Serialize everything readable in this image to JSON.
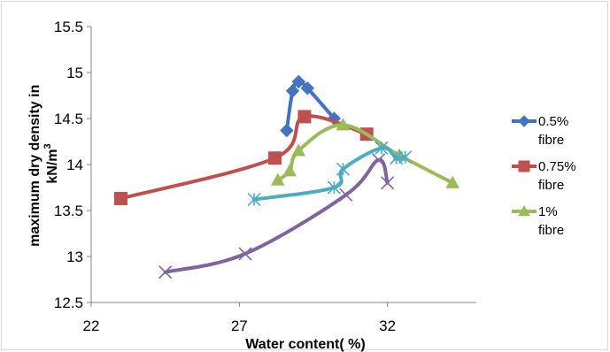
{
  "chart_data": {
    "type": "line",
    "xlabel": "Water content( %)",
    "ylabel_line1": "maximum dry density in",
    "ylabel_line2": "kN/m",
    "ylabel_superscript": "3",
    "xlim": [
      22,
      35
    ],
    "ylim": [
      12.5,
      15.5
    ],
    "x_ticks": [
      22,
      27,
      32
    ],
    "y_ticks": [
      12.5,
      13,
      13.5,
      14,
      14.5,
      15,
      15.5
    ],
    "y_tick_labels": [
      "12.5",
      "13",
      "13.5",
      "14",
      "14.5",
      "15",
      "15.5"
    ],
    "grid": false,
    "legend_position": "right",
    "series": [
      {
        "name": "0.5% fibre",
        "legend_lines": [
          "0.5%",
          "fibre"
        ],
        "color": "#4472C4",
        "marker": "diamond",
        "points": [
          [
            28.6,
            14.37
          ],
          [
            28.8,
            14.8
          ],
          [
            29.0,
            14.9
          ],
          [
            29.3,
            14.83
          ],
          [
            30.2,
            14.5
          ]
        ]
      },
      {
        "name": "0.75% fibre",
        "legend_lines": [
          "0.75%",
          "fibre"
        ],
        "color": "#C0504D",
        "marker": "square",
        "points": [
          [
            23.0,
            13.63
          ],
          [
            28.2,
            14.07
          ],
          [
            29.2,
            14.52
          ],
          [
            31.3,
            14.33
          ]
        ]
      },
      {
        "name": "1% fibre",
        "legend_lines": [
          "1%",
          "fibre"
        ],
        "color": "#9BBB59",
        "marker": "triangle",
        "points": [
          [
            28.3,
            13.83
          ],
          [
            28.7,
            13.93
          ],
          [
            29.0,
            14.15
          ],
          [
            30.5,
            14.43
          ],
          [
            32.4,
            14.1
          ],
          [
            34.2,
            13.8
          ]
        ]
      },
      {
        "legend_lines": [],
        "color": "#4BACC6",
        "marker": "asterisk",
        "points": [
          [
            27.5,
            13.62
          ],
          [
            30.2,
            13.75
          ],
          [
            30.5,
            13.95
          ],
          [
            31.8,
            14.18
          ],
          [
            32.3,
            14.07
          ],
          [
            32.6,
            14.08
          ]
        ]
      },
      {
        "legend_lines": [],
        "color": "#8064A2",
        "marker": "x",
        "points": [
          [
            24.5,
            12.83
          ],
          [
            27.2,
            13.03
          ],
          [
            30.6,
            13.67
          ],
          [
            31.7,
            14.05
          ],
          [
            32.0,
            13.8
          ]
        ]
      }
    ]
  }
}
